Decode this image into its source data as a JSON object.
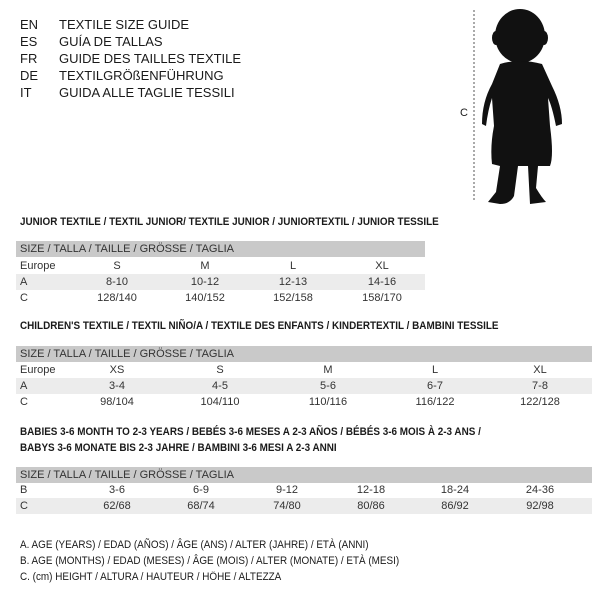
{
  "languages": [
    {
      "code": "EN",
      "title": "TEXTILE SIZE GUIDE"
    },
    {
      "code": "ES",
      "title": "GUÍA DE TALLAS"
    },
    {
      "code": "FR",
      "title": "GUIDE DES TAILLES TEXTILE"
    },
    {
      "code": "DE",
      "title": "TEXTILGRÖßENFÜHRUNG"
    },
    {
      "code": "IT",
      "title": "GUIDA ALLE TAGLIE TESSILI"
    }
  ],
  "figure": {
    "height_label": "C"
  },
  "size_header": "SIZE / TALLA / TAILLE / GRÖSSE / TAGLIA",
  "junior": {
    "title": "JUNIOR TEXTILE / TEXTIL JUNIOR/ TEXTILE JUNIOR / JUNIORTEXTIL / JUNIOR TESSILE",
    "rows": [
      {
        "label": "Europe",
        "values": [
          "S",
          "M",
          "L",
          "XL"
        ]
      },
      {
        "label": "A",
        "values": [
          "8-10",
          "10-12",
          "12-13",
          "14-16"
        ]
      },
      {
        "label": "C",
        "values": [
          "128/140",
          "140/152",
          "152/158",
          "158/170"
        ]
      }
    ]
  },
  "children": {
    "title": "CHILDREN'S TEXTILE / TEXTIL NIÑO/A / TEXTILE DES ENFANTS / KINDERTEXTIL / BAMBINI TESSILE",
    "rows": [
      {
        "label": "Europe",
        "values": [
          "XS",
          "S",
          "M",
          "L",
          "XL"
        ]
      },
      {
        "label": "A",
        "values": [
          "3-4",
          "4-5",
          "5-6",
          "6-7",
          "7-8"
        ]
      },
      {
        "label": "C",
        "values": [
          "98/104",
          "104/110",
          "110/116",
          "116/122",
          "122/128"
        ]
      }
    ]
  },
  "babies": {
    "title_line1": "BABIES 3-6 MONTH TO 2-3 YEARS / BEBÉS 3-6 MESES A 2-3 AÑOS / BÉBÉS 3-6 MOIS À 2-3 ANS /",
    "title_line2": "BABYS 3-6 MONATE BIS 2-3 JAHRE / BAMBINI 3-6 MESI A 2-3 ANNI",
    "rows": [
      {
        "label": "B",
        "values": [
          "3-6",
          "6-9",
          "9-12",
          "12-18",
          "18-24",
          "24-36"
        ]
      },
      {
        "label": "C",
        "values": [
          "62/68",
          "68/74",
          "74/80",
          "80/86",
          "86/92",
          "92/98"
        ]
      }
    ]
  },
  "legend": [
    "A. AGE (YEARS) / EDAD (AÑOS) / ÂGE (ANS) / ALTER (JAHRE) / ETÀ (ANNI)",
    "B. AGE (MONTHS) / EDAD (MESES) / ÂGE (MOIS) / ALTER (MONATE) / ETÀ (MESI)",
    "C. (cm) HEIGHT / ALTURA / HAUTEUR / HÖHE / ALTEZZA"
  ]
}
